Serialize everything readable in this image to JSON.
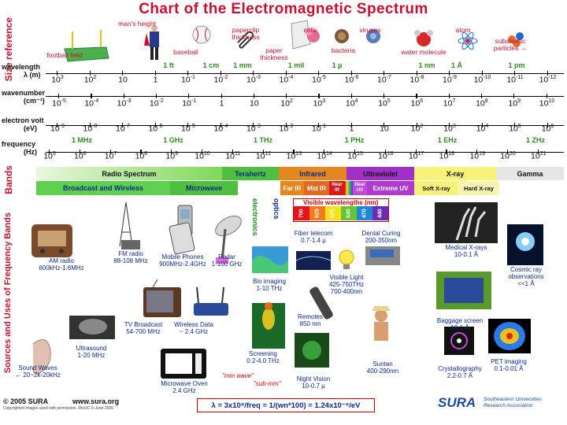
{
  "title": "Chart of the Electromagnetic Spectrum",
  "side_labels": {
    "size_reference": "Size reference",
    "bands": "Bands",
    "sources": "Sources and Uses of Frequency Bands"
  },
  "size_refs": [
    {
      "id": "football",
      "label": "football field"
    },
    {
      "id": "mans",
      "label": "man's height"
    },
    {
      "id": "baseball",
      "label": "baseball"
    },
    {
      "id": "paperclip",
      "label": "paperclip\nthickness"
    },
    {
      "id": "paper",
      "label": "paper\nthickness"
    },
    {
      "id": "cells",
      "label": "cells"
    },
    {
      "id": "bacteria",
      "label": "bacteria"
    },
    {
      "id": "viruses",
      "label": "viruses"
    },
    {
      "id": "water",
      "label": "water molecule"
    },
    {
      "id": "atom",
      "label": "atom"
    },
    {
      "id": "subatomic",
      "label": "subatomic\nparticles →"
    }
  ],
  "rows": {
    "wavelength": {
      "label": "wavelength",
      "unit_label": "λ (m)",
      "values": [
        [
          "10",
          "3"
        ],
        [
          "10",
          "2"
        ],
        [
          "10",
          ""
        ],
        [
          "1",
          ""
        ],
        [
          "10",
          "-1"
        ],
        [
          "10",
          "-2"
        ],
        [
          "10",
          "-3"
        ],
        [
          "10",
          "-4"
        ],
        [
          "10",
          "-5"
        ],
        [
          "10",
          "-6"
        ],
        [
          "10",
          "-7"
        ],
        [
          "10",
          "-8"
        ],
        [
          "10",
          "-9"
        ],
        [
          "10",
          "-10"
        ],
        [
          "10",
          "-11"
        ],
        [
          "10",
          "-12"
        ]
      ],
      "units": [
        "1 ft",
        "1 cm",
        "1 mm",
        "1 mil",
        "1 µ",
        "1 nm",
        "1 Å",
        "1 pm"
      ]
    },
    "wavenumber": {
      "label": "wavenumber",
      "unit_label": "(cm⁻¹)",
      "values": [
        [
          "10",
          "-5"
        ],
        [
          "10",
          "-4"
        ],
        [
          "10",
          "-3"
        ],
        [
          "10",
          "-2"
        ],
        [
          "10",
          "-1"
        ],
        [
          "1",
          ""
        ],
        [
          "10",
          ""
        ],
        [
          "10",
          "2"
        ],
        [
          "10",
          "3"
        ],
        [
          "10",
          "4"
        ],
        [
          "10",
          "5"
        ],
        [
          "10",
          "6"
        ],
        [
          "10",
          "7"
        ],
        [
          "10",
          "8"
        ],
        [
          "10",
          "9"
        ],
        [
          "10",
          "10"
        ]
      ]
    },
    "electron_volt": {
      "label": "electron volt",
      "unit_label": "(eV)",
      "values": [
        [
          "10",
          "-9"
        ],
        [
          "10",
          "-8"
        ],
        [
          "10",
          "-7"
        ],
        [
          "10",
          "-6"
        ],
        [
          "10",
          "-5"
        ],
        [
          "10",
          "-4"
        ],
        [
          "10",
          "-3"
        ],
        [
          "10",
          "-2"
        ],
        [
          "10",
          "-1"
        ],
        [
          "1",
          ""
        ],
        [
          "10",
          ""
        ],
        [
          "10",
          "2"
        ],
        [
          "10",
          "3"
        ],
        [
          "10",
          "4"
        ],
        [
          "10",
          "5"
        ],
        [
          "10",
          "6"
        ]
      ]
    },
    "frequency": {
      "label": "frequency",
      "unit_label": "(Hz)",
      "values": [
        [
          "10",
          "5"
        ],
        [
          "10",
          "6"
        ],
        [
          "10",
          "7"
        ],
        [
          "10",
          "8"
        ],
        [
          "10",
          "9"
        ],
        [
          "10",
          "10"
        ],
        [
          "10",
          "11"
        ],
        [
          "10",
          "12"
        ],
        [
          "10",
          "13"
        ],
        [
          "10",
          "14"
        ],
        [
          "10",
          "15"
        ],
        [
          "10",
          "16"
        ],
        [
          "10",
          "17"
        ],
        [
          "10",
          "18"
        ],
        [
          "10",
          "19"
        ],
        [
          "10",
          "20"
        ],
        [
          "10",
          "21"
        ]
      ],
      "units": [
        "1 MHz",
        "1 GHz",
        "1 THz",
        "1 PHz",
        "1 EHz",
        "1 ZHz"
      ]
    }
  },
  "bands": {
    "radio": "Radio Spectrum",
    "terahertz": "Terahertz",
    "infrared": "Infrared",
    "ultraviolet": "Ultraviolet",
    "xray": "X-ray",
    "gamma": "Gamma",
    "broadcast": "Broadcast and Wireless",
    "microwave": "Microwave",
    "far_ir": "Far IR",
    "mid_ir": "Mid IR",
    "near_ir": "Near IR",
    "near_uv": "Near UV",
    "extreme_uv": "Extreme UV",
    "soft_xray": "Soft X-ray",
    "hard_xray": "Hard X-ray"
  },
  "electronics": "electronics",
  "optics": "optics",
  "visible": {
    "title": "Visible wavelengths (nm)",
    "ticks": [
      "700",
      "625",
      "575",
      "540",
      "470",
      "440"
    ],
    "colors": [
      "#e8121b",
      "#f47a1a",
      "#f5e41a",
      "#64c434",
      "#1e88d4",
      "#6a2db8"
    ]
  },
  "sources": [
    {
      "id": "am",
      "text": "AM radio\n600kHz-1.6MHz"
    },
    {
      "id": "fm",
      "text": "FM radio\n88-108 MHz"
    },
    {
      "id": "mobile",
      "text": "Mobile Phones\n900MHz-2.4GHz"
    },
    {
      "id": "radar",
      "text": "Radar\n1-100 GHz"
    },
    {
      "id": "tv",
      "text": "TV Broadcast\n54-700 MHz"
    },
    {
      "id": "wireless",
      "text": "Wireless Data\n~ 2.4 GHz"
    },
    {
      "id": "ultrasound",
      "text": "Ultrasound\n1-20 MHz"
    },
    {
      "id": "sound",
      "text": "Sound Waves\n← 20~2k-20kHz"
    },
    {
      "id": "microwave",
      "text": "Microwave Oven\n2.4 GHz"
    },
    {
      "id": "bio",
      "text": "Bio imaging\n1-10 THz"
    },
    {
      "id": "screening",
      "text": "Screening\n0.2-4.0 THz"
    },
    {
      "id": "fiber",
      "text": "Fiber telecom\n0.7-1.4 µ"
    },
    {
      "id": "visible_light",
      "text": "Visible Light\n425-750THz\n700-400nm"
    },
    {
      "id": "remotes",
      "text": "Remotes\n850 nm"
    },
    {
      "id": "night",
      "text": "Night Vision\n10-0.7 µ"
    },
    {
      "id": "dental",
      "text": "Dental Curing\n200-350nm"
    },
    {
      "id": "suntan",
      "text": "Suntan\n400-290nm"
    },
    {
      "id": "medical",
      "text": "Medical X-rays\n10-0.1 Å"
    },
    {
      "id": "baggage",
      "text": "Baggage screen\n10-1 Å"
    },
    {
      "id": "crystal",
      "text": "Crystallography\n2.2-0.7 Å"
    },
    {
      "id": "cosmic",
      "text": "Cosmic ray\nobservations\n<<1 Å"
    },
    {
      "id": "pet",
      "text": "PET imaging\n0.1-0.01 Å"
    }
  ],
  "mm_wave": "\"mm wave\"",
  "sub_mm": "\"sub-mm\"",
  "footer": {
    "copyright": "© 2005 SURA",
    "url": "www.sura.org",
    "credit": "Copyrighted images used with permission. Rev2C 6-June-2005",
    "formula": "λ = 3x10⁸/freq = 1/(wn*100) = 1.24x10⁻⁶/eV",
    "logo": "SURA",
    "org": "Southeastern Universities\nResearch Association"
  }
}
